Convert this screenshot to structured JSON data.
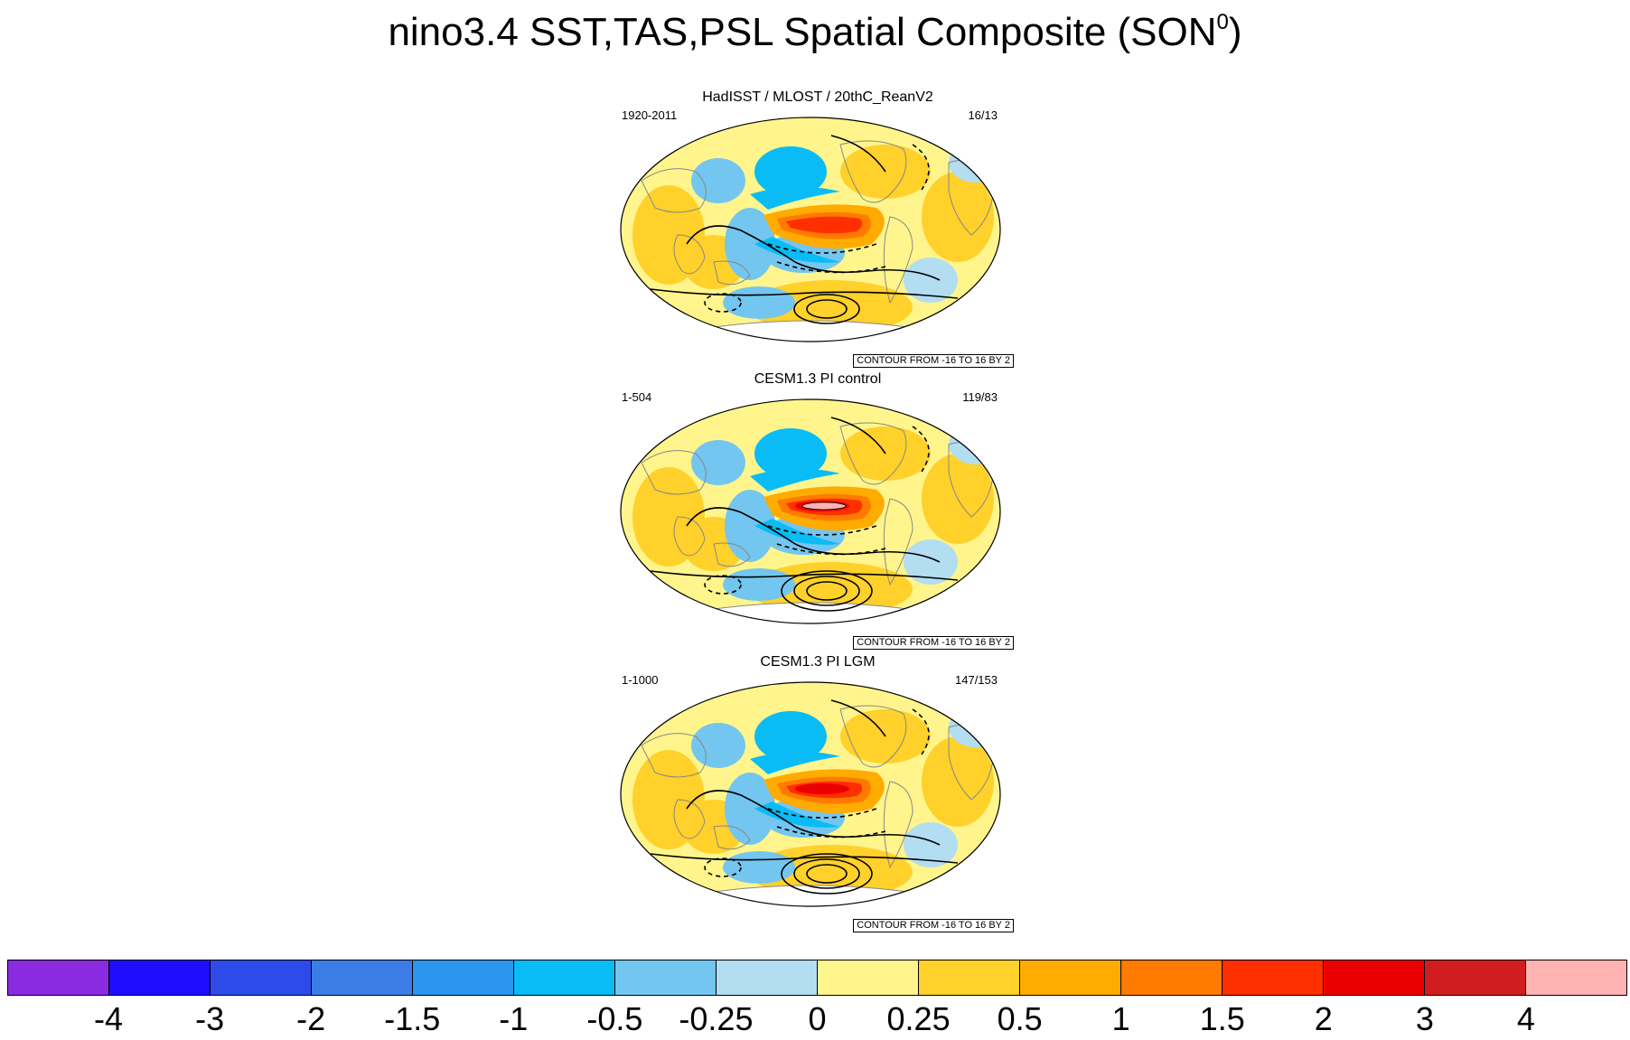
{
  "title": {
    "main": "nino3.4 SST,TAS,PSL Spatial Composite (SON",
    "superscript": "0",
    "close": ")"
  },
  "panels": [
    {
      "title": "HadISST / MLOST / 20thC_ReanV2",
      "left_text": "1920-2011",
      "right_text": "16/13",
      "contour_label": "CONTOUR FROM -16 TO 16 BY 2",
      "nino_strength": 2,
      "pressure_centers": 2
    },
    {
      "title": "CESM1.3 PI control",
      "left_text": "1-504",
      "right_text": "119/83",
      "contour_label": "CONTOUR FROM -16 TO 16 BY 2",
      "nino_strength": 4,
      "pressure_centers": 3
    },
    {
      "title": "CESM1.3 PI LGM",
      "left_text": "1-1000",
      "right_text": "147/153",
      "contour_label": "CONTOUR FROM -16 TO 16 BY 2",
      "nino_strength": 3,
      "pressure_centers": 3
    }
  ],
  "colorbar": {
    "colors": [
      "#8a2be2",
      "#1e0eff",
      "#2e4ae8",
      "#3b7ce6",
      "#2b95f0",
      "#0abcf5",
      "#73c6ef",
      "#b3ddf1",
      "#fff58c",
      "#ffd12a",
      "#ffab00",
      "#ff7b00",
      "#ff2f00",
      "#ea0000",
      "#d11d1d",
      "#ffb3b3"
    ],
    "labels": [
      "-4",
      "-3",
      "-2",
      "-1.5",
      "-1",
      "-0.5",
      "-0.25",
      "0",
      "0.25",
      "0.5",
      "1",
      "1.5",
      "2",
      "3",
      "4"
    ]
  }
}
